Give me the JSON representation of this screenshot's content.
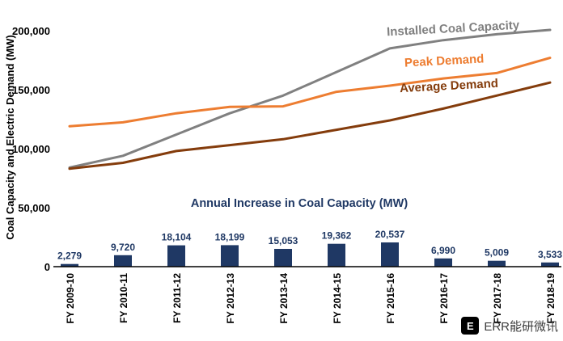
{
  "chart_data": {
    "type": "combo",
    "bar_chart_title": "Annual Increase in Coal Capacity (MW)",
    "ylabel": "Coal Capacity and Electric Demand (MW)",
    "grid": false,
    "legend_position": "inline-series-labels",
    "ylim": [
      0,
      200000
    ],
    "y_tick_values": [
      0,
      50000,
      100000,
      150000,
      200000
    ],
    "y_tick_labels": [
      "0",
      "50,000",
      "100,000",
      "150,000",
      "200,000"
    ],
    "categories": [
      "FY 2009-10",
      "FY 2010-11",
      "FY 2011-12",
      "FY 2012-13",
      "FY 2013-14",
      "FY 2014-15",
      "FY 2015-16",
      "FY 2016-17",
      "FY 2017-18",
      "FY 2018-19"
    ],
    "series": [
      {
        "name": "Installed Coal Capacity",
        "type": "line",
        "color": "#808080",
        "values": [
          84000,
          94000,
          112000,
          130000,
          145000,
          165000,
          185000,
          192000,
          197000,
          200700
        ]
      },
      {
        "name": "Peak Demand",
        "type": "line",
        "color": "#ED7D31",
        "values": [
          119000,
          122300,
          130000,
          135500,
          135900,
          148200,
          153400,
          159500,
          164100,
          177000
        ]
      },
      {
        "name": "Average Demand",
        "type": "line",
        "color": "#843C0C",
        "values": [
          83000,
          88000,
          98000,
          103000,
          108000,
          116000,
          124000,
          134000,
          145000,
          156000
        ]
      }
    ],
    "bars": {
      "name": "Annual Increase in Coal Capacity",
      "type": "bar",
      "color": "#1F3864",
      "values": [
        2279,
        9720,
        18104,
        18199,
        15053,
        19362,
        20537,
        6990,
        5009,
        3533
      ],
      "labels": [
        "2,279",
        "9,720",
        "18,104",
        "18,199",
        "15,053",
        "19,362",
        "20,537",
        "6,990",
        "5,009",
        "3,533"
      ]
    },
    "axis_color": "#000000"
  },
  "watermark": {
    "logo_glyph": "E",
    "text": "ERR能研微讯"
  }
}
